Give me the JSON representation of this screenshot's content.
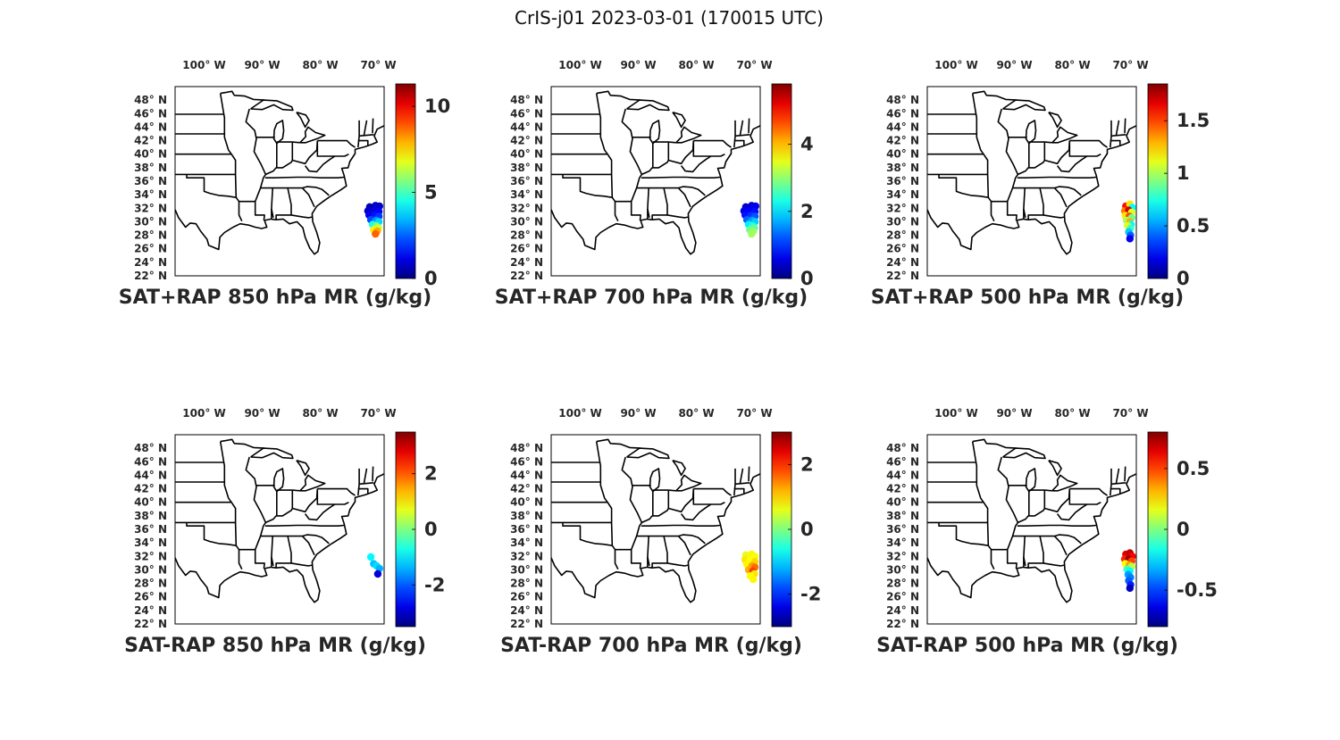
{
  "figure": {
    "suptitle": "CrIS-j01 2023-03-01 (170015 UTC)"
  },
  "map_axes": {
    "lon_ticks": [
      {
        "value": -100,
        "label": "100° W"
      },
      {
        "value": -90,
        "label": "90° W"
      },
      {
        "value": -80,
        "label": "80° W"
      },
      {
        "value": -70,
        "label": "70° W"
      }
    ],
    "lat_ticks": [
      {
        "value": 48,
        "label": "48° N"
      },
      {
        "value": 46,
        "label": "46° N"
      },
      {
        "value": 44,
        "label": "44° N"
      },
      {
        "value": 42,
        "label": "42° N"
      },
      {
        "value": 40,
        "label": "40° N"
      },
      {
        "value": 38,
        "label": "38° N"
      },
      {
        "value": 36,
        "label": "36° N"
      },
      {
        "value": 34,
        "label": "34° N"
      },
      {
        "value": 32,
        "label": "32° N"
      },
      {
        "value": 30,
        "label": "30° N"
      },
      {
        "value": 28,
        "label": "28° N"
      },
      {
        "value": 26,
        "label": "26° N"
      },
      {
        "value": 24,
        "label": "24° N"
      },
      {
        "value": 22,
        "label": "22° N"
      }
    ],
    "lon_range": [
      -105,
      -69
    ],
    "lat_range": [
      22,
      50
    ]
  },
  "colormap": "jet",
  "chart_data": [
    {
      "type": "scatter",
      "title": "SAT+RAP 850 hPa MR (g/kg)",
      "colorbar": {
        "range": [
          0,
          11.3
        ],
        "ticks": [
          {
            "v": 0,
            "label": "0"
          },
          {
            "v": 5,
            "label": "5"
          },
          {
            "v": 10,
            "label": "10"
          }
        ]
      },
      "points": [
        {
          "lon": -71.5,
          "lat": 32.2,
          "v": 0.6
        },
        {
          "lon": -70.5,
          "lat": 32.4,
          "v": 0.7
        },
        {
          "lon": -69.8,
          "lat": 32.3,
          "v": 0.9
        },
        {
          "lon": -71.8,
          "lat": 31.6,
          "v": 0.8
        },
        {
          "lon": -70.8,
          "lat": 31.7,
          "v": 1.0
        },
        {
          "lon": -69.9,
          "lat": 31.5,
          "v": 1.4
        },
        {
          "lon": -71.6,
          "lat": 31.0,
          "v": 1.2
        },
        {
          "lon": -70.6,
          "lat": 30.9,
          "v": 1.6
        },
        {
          "lon": -69.9,
          "lat": 30.8,
          "v": 2.0
        },
        {
          "lon": -71.3,
          "lat": 30.3,
          "v": 2.2
        },
        {
          "lon": -70.4,
          "lat": 30.2,
          "v": 3.0
        },
        {
          "lon": -69.9,
          "lat": 30.0,
          "v": 3.8
        },
        {
          "lon": -71.0,
          "lat": 29.6,
          "v": 4.5
        },
        {
          "lon": -70.3,
          "lat": 29.4,
          "v": 5.5
        },
        {
          "lon": -70.0,
          "lat": 29.1,
          "v": 6.5
        },
        {
          "lon": -70.8,
          "lat": 28.8,
          "v": 7.2
        },
        {
          "lon": -70.2,
          "lat": 28.6,
          "v": 8.0
        },
        {
          "lon": -70.5,
          "lat": 28.2,
          "v": 8.8
        }
      ]
    },
    {
      "type": "scatter",
      "title": "SAT+RAP 700 hPa MR (g/kg)",
      "colorbar": {
        "range": [
          0,
          5.8
        ],
        "ticks": [
          {
            "v": 0,
            "label": "0"
          },
          {
            "v": 2,
            "label": "2"
          },
          {
            "v": 4,
            "label": "4"
          }
        ]
      },
      "points": [
        {
          "lon": -71.5,
          "lat": 32.2,
          "v": 0.4
        },
        {
          "lon": -70.5,
          "lat": 32.4,
          "v": 0.5
        },
        {
          "lon": -69.8,
          "lat": 32.3,
          "v": 0.6
        },
        {
          "lon": -71.8,
          "lat": 31.6,
          "v": 0.6
        },
        {
          "lon": -70.8,
          "lat": 31.7,
          "v": 0.7
        },
        {
          "lon": -69.9,
          "lat": 31.5,
          "v": 0.8
        },
        {
          "lon": -71.6,
          "lat": 31.0,
          "v": 0.8
        },
        {
          "lon": -70.6,
          "lat": 30.9,
          "v": 1.0
        },
        {
          "lon": -69.9,
          "lat": 30.8,
          "v": 1.2
        },
        {
          "lon": -71.3,
          "lat": 30.3,
          "v": 1.3
        },
        {
          "lon": -70.4,
          "lat": 30.2,
          "v": 1.6
        },
        {
          "lon": -69.9,
          "lat": 30.0,
          "v": 1.9
        },
        {
          "lon": -71.0,
          "lat": 29.6,
          "v": 2.1
        },
        {
          "lon": -70.3,
          "lat": 29.4,
          "v": 2.4
        },
        {
          "lon": -70.0,
          "lat": 29.1,
          "v": 2.7
        },
        {
          "lon": -70.8,
          "lat": 28.8,
          "v": 2.8
        },
        {
          "lon": -70.2,
          "lat": 28.6,
          "v": 3.0
        },
        {
          "lon": -70.5,
          "lat": 28.2,
          "v": 3.1
        }
      ]
    },
    {
      "type": "scatter",
      "title": "SAT+RAP 500 hPa MR (g/kg)",
      "colorbar": {
        "range": [
          0,
          1.85
        ],
        "ticks": [
          {
            "v": 0,
            "label": "0"
          },
          {
            "v": 0.5,
            "label": "0.5"
          },
          {
            "v": 1,
            "label": "1"
          },
          {
            "v": 1.5,
            "label": "1.5"
          }
        ]
      },
      "points": [
        {
          "lon": -70.8,
          "lat": 32.3,
          "v": 1.6
        },
        {
          "lon": -70.1,
          "lat": 32.6,
          "v": 1.2
        },
        {
          "lon": -69.7,
          "lat": 32.1,
          "v": 0.7
        },
        {
          "lon": -71.0,
          "lat": 31.6,
          "v": 1.4
        },
        {
          "lon": -70.3,
          "lat": 31.7,
          "v": 1.7
        },
        {
          "lon": -69.8,
          "lat": 31.4,
          "v": 1.1
        },
        {
          "lon": -70.9,
          "lat": 30.9,
          "v": 1.2
        },
        {
          "lon": -70.2,
          "lat": 30.8,
          "v": 1.5
        },
        {
          "lon": -69.8,
          "lat": 30.6,
          "v": 0.9
        },
        {
          "lon": -70.7,
          "lat": 30.2,
          "v": 1.0
        },
        {
          "lon": -70.1,
          "lat": 30.0,
          "v": 1.3
        },
        {
          "lon": -69.9,
          "lat": 29.6,
          "v": 0.7
        },
        {
          "lon": -70.5,
          "lat": 29.4,
          "v": 1.1
        },
        {
          "lon": -70.0,
          "lat": 29.0,
          "v": 0.8
        },
        {
          "lon": -70.3,
          "lat": 28.5,
          "v": 0.6
        },
        {
          "lon": -70.0,
          "lat": 28.0,
          "v": 0.4
        },
        {
          "lon": -70.1,
          "lat": 27.5,
          "v": 0.2
        }
      ]
    },
    {
      "type": "scatter",
      "title": "SAT-RAP 850 hPa MR (g/kg)",
      "colorbar": {
        "range": [
          -3.5,
          3.5
        ],
        "ticks": [
          {
            "v": -2,
            "label": "-2"
          },
          {
            "v": 0,
            "label": "0"
          },
          {
            "v": 2,
            "label": "2"
          }
        ]
      },
      "points": [
        {
          "lon": -71.3,
          "lat": 31.9,
          "v": -0.9
        },
        {
          "lon": -70.8,
          "lat": 30.9,
          "v": -1.3
        },
        {
          "lon": -70.3,
          "lat": 30.6,
          "v": -1.1
        },
        {
          "lon": -69.8,
          "lat": 30.2,
          "v": -1.4
        },
        {
          "lon": -70.1,
          "lat": 29.4,
          "v": -2.9
        }
      ]
    },
    {
      "type": "scatter",
      "title": "SAT-RAP 700 hPa MR (g/kg)",
      "colorbar": {
        "range": [
          -3.0,
          3.0
        ],
        "ticks": [
          {
            "v": -2,
            "label": "-2"
          },
          {
            "v": 0,
            "label": "0"
          },
          {
            "v": 2,
            "label": "2"
          }
        ]
      },
      "points": [
        {
          "lon": -71.5,
          "lat": 32.2,
          "v": 0.6
        },
        {
          "lon": -70.5,
          "lat": 32.3,
          "v": 0.8
        },
        {
          "lon": -69.9,
          "lat": 32.0,
          "v": 0.7
        },
        {
          "lon": -71.6,
          "lat": 31.5,
          "v": 0.9
        },
        {
          "lon": -70.7,
          "lat": 31.5,
          "v": 0.7
        },
        {
          "lon": -69.9,
          "lat": 31.2,
          "v": 1.0
        },
        {
          "lon": -71.3,
          "lat": 30.8,
          "v": 0.8
        },
        {
          "lon": -70.4,
          "lat": 30.6,
          "v": 1.3
        },
        {
          "lon": -69.9,
          "lat": 30.4,
          "v": 1.6
        },
        {
          "lon": -71.0,
          "lat": 30.0,
          "v": 1.2
        },
        {
          "lon": -70.3,
          "lat": 29.8,
          "v": 1.9
        },
        {
          "lon": -70.0,
          "lat": 29.4,
          "v": 0.9
        },
        {
          "lon": -70.7,
          "lat": 29.1,
          "v": 0.7
        },
        {
          "lon": -70.2,
          "lat": 28.6,
          "v": 0.8
        }
      ]
    },
    {
      "type": "scatter",
      "title": "SAT-RAP 500 hPa MR (g/kg)",
      "colorbar": {
        "range": [
          -0.8,
          0.8
        ],
        "ticks": [
          {
            "v": -0.5,
            "label": "-0.5"
          },
          {
            "v": 0,
            "label": "0"
          },
          {
            "v": 0.5,
            "label": "0.5"
          }
        ]
      },
      "points": [
        {
          "lon": -70.8,
          "lat": 32.3,
          "v": 0.65
        },
        {
          "lon": -70.1,
          "lat": 32.5,
          "v": 0.7
        },
        {
          "lon": -69.7,
          "lat": 32.0,
          "v": 0.6
        },
        {
          "lon": -71.0,
          "lat": 31.6,
          "v": 0.55
        },
        {
          "lon": -70.3,
          "lat": 31.6,
          "v": 0.75
        },
        {
          "lon": -69.8,
          "lat": 31.3,
          "v": 0.5
        },
        {
          "lon": -70.9,
          "lat": 30.9,
          "v": 0.2
        },
        {
          "lon": -70.2,
          "lat": 30.7,
          "v": 0.35
        },
        {
          "lon": -69.8,
          "lat": 30.5,
          "v": 0.1
        },
        {
          "lon": -70.6,
          "lat": 30.1,
          "v": -0.1
        },
        {
          "lon": -70.1,
          "lat": 29.8,
          "v": -0.2
        },
        {
          "lon": -70.4,
          "lat": 29.3,
          "v": -0.35
        },
        {
          "lon": -70.0,
          "lat": 28.9,
          "v": -0.4
        },
        {
          "lon": -70.3,
          "lat": 28.4,
          "v": -0.45
        },
        {
          "lon": -70.0,
          "lat": 27.8,
          "v": -0.55
        },
        {
          "lon": -70.1,
          "lat": 27.3,
          "v": -0.7
        }
      ]
    }
  ]
}
